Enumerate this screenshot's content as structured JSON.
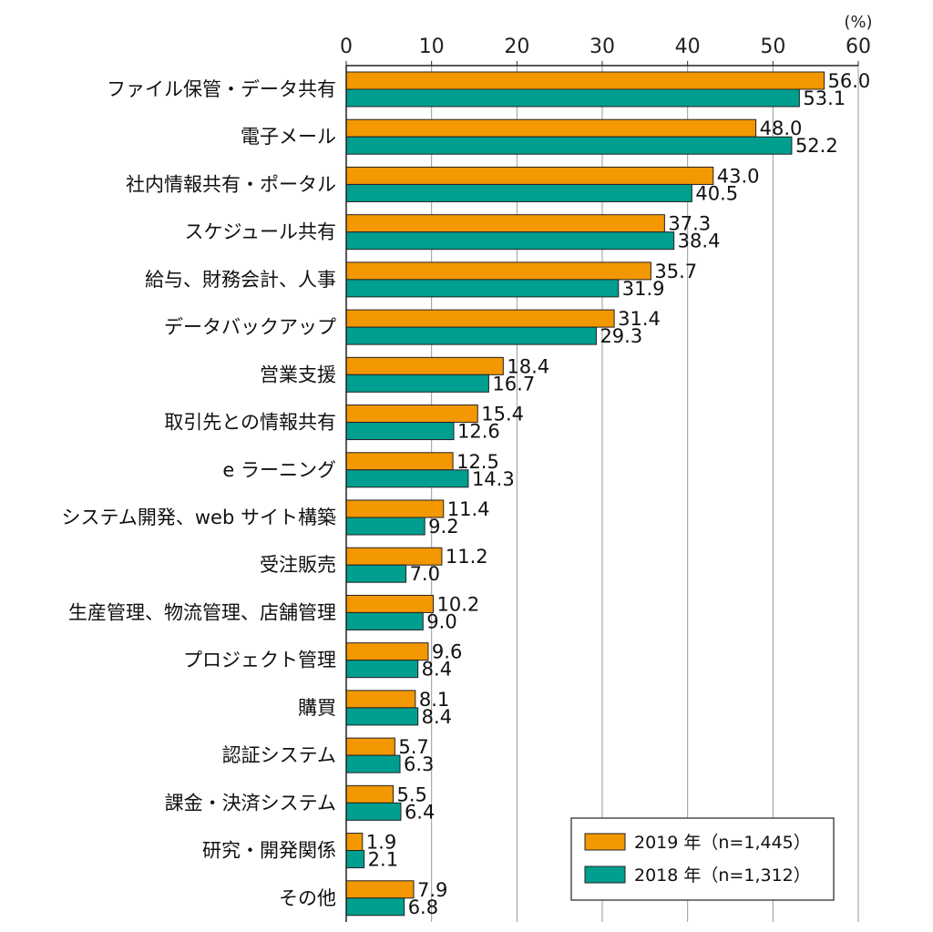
{
  "chart_data": {
    "type": "bar",
    "orientation": "horizontal",
    "unit": "(%)",
    "xlim": [
      0,
      60
    ],
    "xticks": [
      0,
      10,
      20,
      30,
      40,
      50,
      60
    ],
    "grid": true,
    "legend_position": "bottom-right",
    "categories": [
      "ファイル保管・データ共有",
      "電子メール",
      "社内情報共有・ポータル",
      "スケジュール共有",
      "給与、財務会計、人事",
      "データバックアップ",
      "営業支援",
      "取引先との情報共有",
      "e ラーニング",
      "システム開発、web サイト構築",
      "受注販売",
      "生産管理、物流管理、店舗管理",
      "プロジェクト管理",
      "購買",
      "認証システム",
      "課金・決済システム",
      "研究・開発関係",
      "その他"
    ],
    "series": [
      {
        "name": "2019 年（n=1,445）",
        "color": "#f39800",
        "values": [
          56.0,
          48.0,
          43.0,
          37.3,
          35.7,
          31.4,
          18.4,
          15.4,
          12.5,
          11.4,
          11.2,
          10.2,
          9.6,
          8.1,
          5.7,
          5.5,
          1.9,
          7.9
        ],
        "labels": [
          "56.0",
          "48.0",
          "43.0",
          "37.3",
          "35.7",
          "31.4",
          "18.4",
          "15.4",
          "12.5",
          "11.4",
          "11.2",
          "10.2",
          "9.6",
          "8.1",
          "5.7",
          "5.5",
          "1.9",
          "7.9"
        ]
      },
      {
        "name": "2018 年（n=1,312）",
        "color": "#009e8f",
        "values": [
          53.1,
          52.2,
          40.5,
          38.4,
          31.9,
          29.3,
          16.7,
          12.6,
          14.3,
          9.2,
          7.0,
          9.0,
          8.4,
          8.4,
          6.3,
          6.4,
          2.1,
          6.8
        ],
        "labels": [
          "53.1",
          "52.2",
          "40.5",
          "38.4",
          "31.9",
          "29.3",
          "16.7",
          "12.6",
          "14.3",
          "9.2",
          "7.0",
          "9.0",
          "8.4",
          "8.4",
          "6.3",
          "6.4",
          "2.1",
          "6.8"
        ]
      }
    ]
  }
}
